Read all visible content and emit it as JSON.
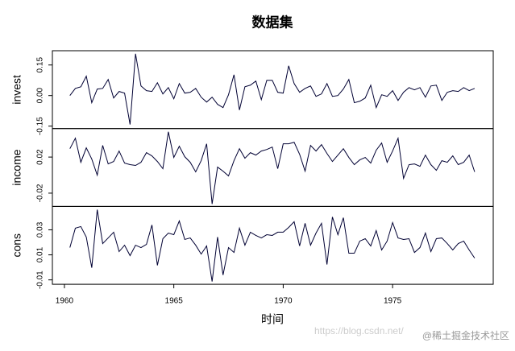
{
  "chart_data": {
    "type": "line",
    "title": "数据集",
    "xlabel": "时间",
    "watermark": [
      "https://blog.csdn.net/",
      "@稀土掘金技术社区"
    ],
    "xlim": [
      1959.45,
      1979.6
    ],
    "xticks": [
      1960,
      1965,
      1970,
      1975
    ],
    "x": [
      1960.25,
      1960.5,
      1960.75,
      1961,
      1961.25,
      1961.5,
      1961.75,
      1962,
      1962.25,
      1962.5,
      1962.75,
      1963,
      1963.25,
      1963.5,
      1963.75,
      1964,
      1964.25,
      1964.5,
      1964.75,
      1965,
      1965.25,
      1965.5,
      1965.75,
      1966,
      1966.25,
      1966.5,
      1966.75,
      1967,
      1967.25,
      1967.5,
      1967.75,
      1968,
      1968.25,
      1968.5,
      1968.75,
      1969,
      1969.25,
      1969.5,
      1969.75,
      1970,
      1970.25,
      1970.5,
      1970.75,
      1971,
      1971.25,
      1971.5,
      1971.75,
      1972,
      1972.25,
      1972.5,
      1972.75,
      1973,
      1973.25,
      1973.5,
      1973.75,
      1974,
      1974.25,
      1974.5,
      1974.75,
      1975,
      1975.25,
      1975.5,
      1975.75,
      1976,
      1976.25,
      1976.5,
      1976.75,
      1977,
      1977.25,
      1977.5,
      1977.75,
      1978,
      1978.25,
      1978.5,
      1978.75
    ],
    "panels": [
      {
        "ylabel": "invest",
        "color": "#000033",
        "ylim": [
          -0.162,
          0.22
        ],
        "yticks": [
          -0.15,
          {
            "value": 0,
            "label": "0.00"
          },
          0.15
        ],
        "values": [
          0,
          0.035,
          0.043,
          0.095,
          -0.035,
          0.032,
          0.035,
          0.079,
          -0.012,
          0.02,
          0.012,
          -0.142,
          0.205,
          0.047,
          0.024,
          0.02,
          0.063,
          0.008,
          0.039,
          -0.016,
          0.059,
          0.012,
          0.016,
          0.035,
          -0.008,
          -0.032,
          -0.008,
          -0.043,
          -0.059,
          0.004,
          0.102,
          -0.071,
          0.043,
          0.051,
          0.071,
          -0.02,
          0.075,
          0.075,
          0.016,
          0.012,
          0.146,
          0.059,
          0.016,
          0.035,
          0.047,
          -0.004,
          0.008,
          0.059,
          -0.004,
          0,
          0.032,
          0.079,
          -0.035,
          -0.028,
          -0.012,
          0.051,
          -0.059,
          0.004,
          -0.004,
          0.024,
          -0.024,
          0.016,
          0.039,
          0.028,
          0.039,
          -0.008,
          0.047,
          0.051,
          -0.024,
          0.016,
          0.024,
          0.02,
          0.039,
          0.024,
          0.035
        ]
      },
      {
        "ylabel": "income",
        "color": "#000033",
        "ylim": [
          -0.0347,
          0.0516
        ],
        "yticks": [
          -0.02,
          0.02
        ],
        "values": [
          0.0293,
          0.0409,
          0.0142,
          0.0302,
          0.0178,
          0,
          0.0329,
          0.0124,
          0.0151,
          0.0267,
          0.0133,
          0.0116,
          0.0107,
          0.0142,
          0.0249,
          0.0213,
          0.0151,
          0.0071,
          0.048,
          0.0196,
          0.032,
          0.0204,
          0.0142,
          0.0036,
          0.016,
          0.0347,
          -0.032,
          0.0089,
          0.0044,
          -0.0009,
          0.016,
          0.0293,
          0.0187,
          0.0249,
          0.0222,
          0.0267,
          0.0284,
          0.0311,
          0.0071,
          0.0347,
          0.0347,
          0.0364,
          0.0231,
          0.0044,
          0.0329,
          0.0267,
          0.0338,
          0.024,
          0.0151,
          0.0222,
          0.0293,
          0.0196,
          0.0116,
          0.0169,
          0.0196,
          0.0133,
          0.0276,
          0.0356,
          0.0142,
          0.0267,
          0.0409,
          -0.0036,
          0.0116,
          0.0124,
          0.0098,
          0.0222,
          0.0116,
          0.0053,
          0.016,
          0.0142,
          0.0213,
          0.0116,
          0.0142,
          0.0222,
          0.0036
        ]
      },
      {
        "ylabel": "cons",
        "color": "#000033",
        "ylim": [
          -0.0135,
          0.0487
        ],
        "yticks": [
          -0.01,
          0.01,
          0.03
        ],
        "values": [
          0.0158,
          0.0313,
          0.0326,
          0.0242,
          -0.0003,
          0.0461,
          0.019,
          0.0235,
          0.0281,
          0.0126,
          0.0177,
          0.0094,
          0.0177,
          0.0158,
          0.0184,
          0.0339,
          0.0016,
          0.0229,
          0.0274,
          0.0261,
          0.0371,
          0.0223,
          0.0235,
          0.0177,
          0.0106,
          0.0171,
          -0.0113,
          0.0242,
          -0.0061,
          0.0158,
          0.0119,
          0.0313,
          0.0177,
          0.0281,
          0.0255,
          0.0235,
          0.0261,
          0.0255,
          0.0281,
          0.0281,
          0.0319,
          0.0365,
          0.0171,
          0.0352,
          0.0177,
          0.0274,
          0.0352,
          0.0023,
          0.0403,
          0.0261,
          0.0397,
          0.0113,
          0.0113,
          0.021,
          0.0229,
          0.0171,
          0.0294,
          0.0139,
          0.021,
          0.0358,
          0.0235,
          0.0223,
          0.0229,
          0.0119,
          0.0158,
          0.0274,
          0.0126,
          0.0229,
          0.0235,
          0.019,
          0.0139,
          0.019,
          0.021,
          0.0139,
          0.0074
        ]
      }
    ]
  }
}
